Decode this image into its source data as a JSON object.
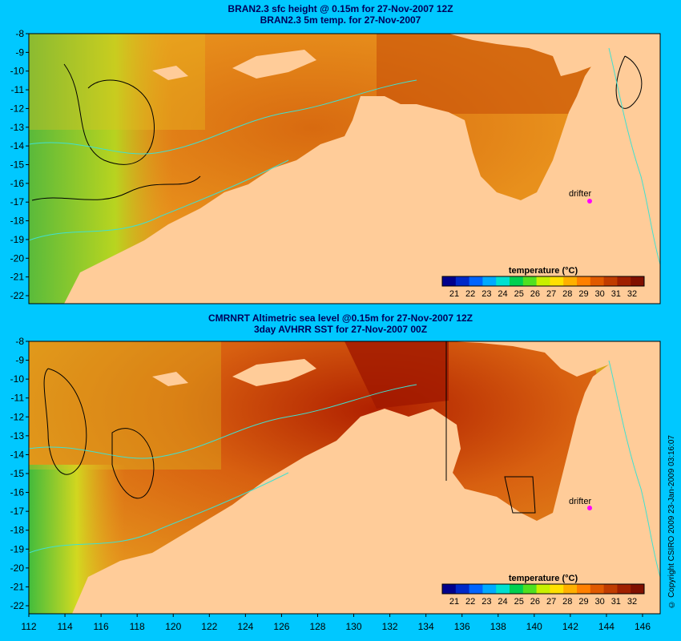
{
  "panels": [
    {
      "title_line1": "BRAN2.3 sfc height @ 0.15m for 27-Nov-2007 12Z",
      "title_line2": "BRAN2.3 5m temp. for 27-Nov-2007",
      "drifter_label": "drifter",
      "colorbar_title": "temperature (°C)"
    },
    {
      "title_line1": "CMRNRT Altimetric sea level  @0.15m  for 27-Nov-2007 12Z",
      "title_line2": "3day AVHRR SST for 27-Nov-2007 00Z",
      "drifter_label": "drifter",
      "colorbar_title": "temperature (°C)"
    }
  ],
  "y_ticks": [
    "-8",
    "-9",
    "-10",
    "-11",
    "-12",
    "-13",
    "-14",
    "-15",
    "-16",
    "-17",
    "-18",
    "-19",
    "-20",
    "-21",
    "-22"
  ],
  "x_ticks": [
    "112",
    "114",
    "116",
    "118",
    "120",
    "122",
    "124",
    "126",
    "128",
    "130",
    "132",
    "134",
    "136",
    "138",
    "140",
    "142",
    "144",
    "146"
  ],
  "colorbar_ticks": [
    "21",
    "22",
    "23",
    "24",
    "25",
    "26",
    "27",
    "28",
    "29",
    "30",
    "31",
    "32"
  ],
  "colorbar_colors": [
    "#00008c",
    "#0028c8",
    "#0064ff",
    "#00aaff",
    "#00e0d0",
    "#00d050",
    "#50e020",
    "#c8f000",
    "#ffe000",
    "#ffb000",
    "#ff8000",
    "#e05a00",
    "#c03c00",
    "#a02000",
    "#801000"
  ],
  "land_color": "#ffcc99",
  "copyright": "© Copyright CSIRO 2009   23-Jan-2009 03:16:07"
}
